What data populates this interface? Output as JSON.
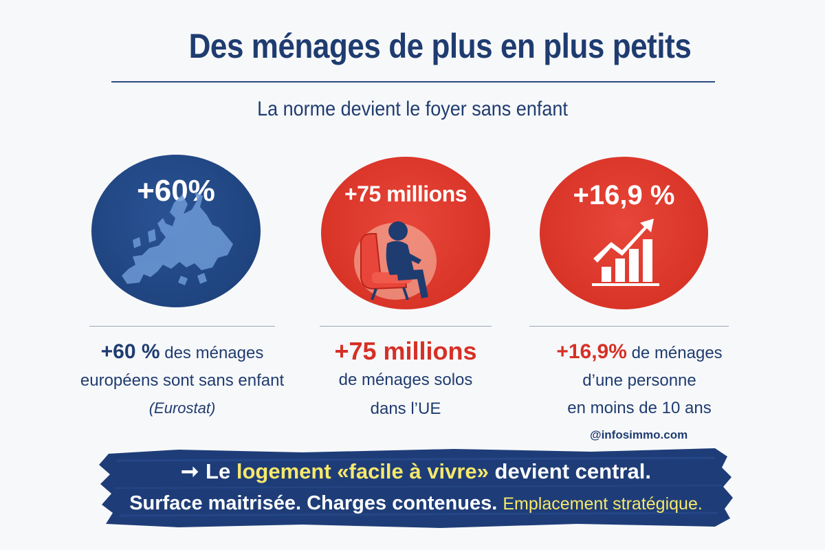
{
  "header": {
    "title": "Des ménages de plus en plus petits",
    "subtitle": "La norme devient le foyer sans enfant"
  },
  "colors": {
    "navy": "#1f3c70",
    "red": "#d93428",
    "highlight": "#f7e86b",
    "background": "#f7f8fa"
  },
  "cards": [
    {
      "circle_value": "+60%",
      "icon": "europe-map-icon",
      "circle_color": "#1f447f",
      "stat_value": "+60 %",
      "stat_text": "des ménages",
      "line2": "européens sont sans enfant",
      "source": "(Eurostat)"
    },
    {
      "circle_value": "+75 millions",
      "icon": "person-sitting-armchair-icon",
      "circle_color": "#d93428",
      "stat_value": "+75 millions",
      "line2": "de ménages solos",
      "line3": "dans l’UE"
    },
    {
      "circle_value": "+16,9 %",
      "icon": "growth-chart-arrow-icon",
      "circle_color": "#d93428",
      "stat_value": "+16,9%",
      "stat_text": "de ménages",
      "line2": "d’une personne",
      "line3": "en moins de 10 ans"
    }
  ],
  "handle": "@infosimmo.com",
  "banner": {
    "arrow_icon": "right-arrow-icon",
    "line1_prefix": "Le",
    "line1_highlight": "logement «facile à vivre»",
    "line1_suffix": "devient central.",
    "line2_main": "Surface maitrisée. Charges contenues.",
    "line2_highlight": "Emplacement stratégique."
  }
}
